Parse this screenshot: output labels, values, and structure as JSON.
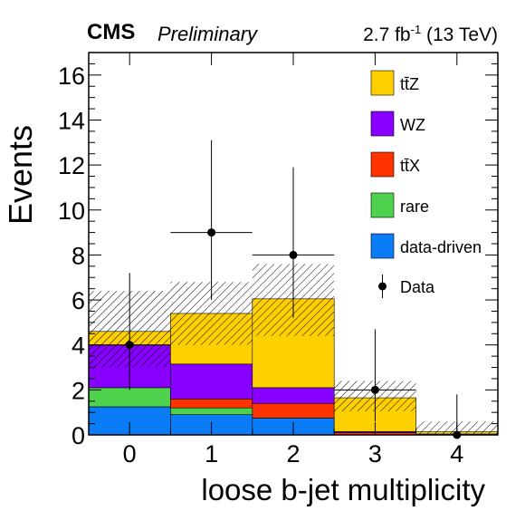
{
  "header": {
    "experiment": "CMS",
    "status": "Preliminary",
    "lumi_prefix": "2.7 fb",
    "lumi_exp": "-1",
    "lumi_suffix": " (13 TeV)"
  },
  "chart_data": {
    "type": "bar",
    "stacked": true,
    "xlabel": "loose b-jet multiplicity",
    "ylabel": "Events",
    "categories": [
      "0",
      "1",
      "2",
      "3",
      "4"
    ],
    "ylim": [
      0,
      17
    ],
    "yticks": [
      "0",
      "2",
      "4",
      "6",
      "8",
      "10",
      "12",
      "14",
      "16"
    ],
    "legend_position": "top-right",
    "series": [
      {
        "name": "data-driven",
        "color": "#0a7cf5",
        "values": [
          1.25,
          0.9,
          0.75,
          0.0,
          0.0
        ]
      },
      {
        "name": "rare",
        "color": "#4ed24e",
        "values": [
          0.85,
          0.3,
          0.0,
          0.0,
          0.0
        ]
      },
      {
        "name": "ttX",
        "color": "#ff3300",
        "values": [
          0.0,
          0.4,
          0.65,
          0.1,
          0.02
        ]
      },
      {
        "name": "WZ",
        "color": "#8800ff",
        "values": [
          1.9,
          1.55,
          0.7,
          0.05,
          0.02
        ]
      },
      {
        "name": "ttZ",
        "color": "#ffd000",
        "values": [
          0.6,
          2.25,
          3.95,
          1.5,
          0.1
        ]
      }
    ],
    "uncertainty_band": {
      "label": "hatched",
      "lower": [
        3.0,
        4.0,
        4.4,
        1.05,
        0.05
      ],
      "upper": [
        6.4,
        6.8,
        7.6,
        2.4,
        0.6
      ]
    },
    "data": {
      "name": "Data",
      "values": [
        4,
        9,
        8,
        2,
        0
      ],
      "err_low": [
        2.0,
        3.0,
        2.8,
        1.4,
        0.0
      ],
      "err_high": [
        3.2,
        4.1,
        3.9,
        2.7,
        1.8
      ]
    },
    "legend_labels": [
      "tt̄Z",
      "WZ",
      "tt̄X",
      "rare",
      "data-driven",
      "Data"
    ]
  }
}
